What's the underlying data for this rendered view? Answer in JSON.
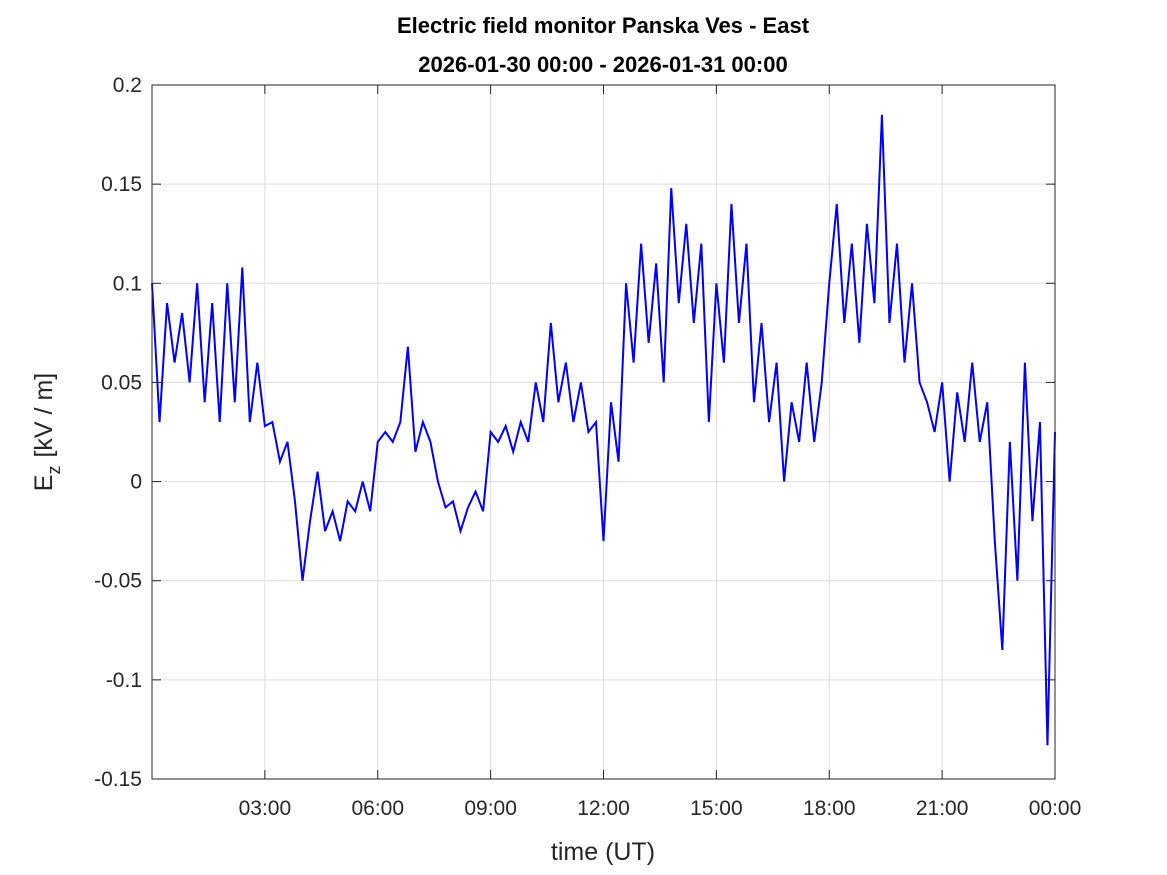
{
  "chart_data": {
    "type": "line",
    "title": "Electric field monitor Panska Ves - East",
    "subtitle": "2026-01-30 00:00 - 2026-01-31 00:00",
    "x_label": "time (UT)",
    "y_label": {
      "base": "E",
      "subscript": "z",
      "rest": "[kV / m]"
    },
    "xlim": [
      0,
      24
    ],
    "xticks": [
      {
        "value": 3,
        "label": "03:00"
      },
      {
        "value": 6,
        "label": "06:00"
      },
      {
        "value": 9,
        "label": "09:00"
      },
      {
        "value": 12,
        "label": "12:00"
      },
      {
        "value": 15,
        "label": "15:00"
      },
      {
        "value": 18,
        "label": "18:00"
      },
      {
        "value": 21,
        "label": "21:00"
      },
      {
        "value": 24,
        "label": "00:00"
      }
    ],
    "ylim": [
      -0.15,
      0.2
    ],
    "yticks": [
      -0.15,
      -0.1,
      -0.05,
      0,
      0.05,
      0.1,
      0.15,
      0.2
    ],
    "grid": true,
    "x": [
      0,
      0.2,
      0.4,
      0.6,
      0.8,
      1,
      1.2,
      1.4,
      1.6,
      1.8,
      2,
      2.2,
      2.4,
      2.6,
      2.8,
      3,
      3.2,
      3.4,
      3.6,
      3.8,
      4,
      4.2,
      4.4,
      4.6,
      4.8,
      5,
      5.2,
      5.4,
      5.6,
      5.8,
      6,
      6.2,
      6.4,
      6.6,
      6.8,
      7,
      7.2,
      7.4,
      7.6,
      7.8,
      8,
      8.2,
      8.4,
      8.6,
      8.8,
      9,
      9.2,
      9.4,
      9.6,
      9.8,
      10,
      10.2,
      10.4,
      10.6,
      10.8,
      11,
      11.2,
      11.4,
      11.6,
      11.8,
      12,
      12.2,
      12.4,
      12.6,
      12.8,
      13,
      13.2,
      13.4,
      13.6,
      13.8,
      14,
      14.2,
      14.4,
      14.6,
      14.8,
      15,
      15.2,
      15.4,
      15.6,
      15.8,
      16,
      16.2,
      16.4,
      16.6,
      16.8,
      17,
      17.2,
      17.4,
      17.6,
      17.8,
      18,
      18.2,
      18.4,
      18.6,
      18.8,
      19,
      19.2,
      19.4,
      19.6,
      19.8,
      20,
      20.2,
      20.4,
      20.6,
      20.8,
      21,
      21.2,
      21.4,
      21.6,
      21.8,
      22,
      22.2,
      22.4,
      22.6,
      22.8,
      23,
      23.2,
      23.4,
      23.6,
      23.8,
      24
    ],
    "series": [
      {
        "color": "#0000ff",
        "values": [
          0.1,
          0.03,
          0.09,
          0.06,
          0.085,
          0.05,
          0.1,
          0.04,
          0.09,
          0.03,
          0.1,
          0.04,
          0.108,
          0.03,
          0.06,
          0.028,
          0.03,
          0.01,
          0.02,
          -0.01,
          -0.05,
          -0.02,
          0.005,
          -0.025,
          -0.015,
          -0.03,
          -0.01,
          -0.015,
          0,
          -0.015,
          0.02,
          0.025,
          0.02,
          0.03,
          0.068,
          0.015,
          0.03,
          0.02,
          0,
          -0.013,
          -0.01,
          -0.025,
          -0.013,
          -0.005,
          -0.015,
          0.025,
          0.02,
          0.028,
          0.015,
          0.03,
          0.02,
          0.05,
          0.03,
          0.08,
          0.04,
          0.06,
          0.03,
          0.05,
          0.025,
          0.03,
          -0.03,
          0.04,
          0.01,
          0.1,
          0.06,
          0.12,
          0.07,
          0.11,
          0.05,
          0.148,
          0.09,
          0.13,
          0.08,
          0.12,
          0.03,
          0.1,
          0.06,
          0.14,
          0.08,
          0.12,
          0.04,
          0.08,
          0.03,
          0.06,
          0,
          0.04,
          0.02,
          0.06,
          0.02,
          0.05,
          0.1,
          0.14,
          0.08,
          0.12,
          0.07,
          0.13,
          0.09,
          0.185,
          0.08,
          0.12,
          0.06,
          0.1,
          0.05,
          0.04,
          0.025,
          0.05,
          0,
          0.045,
          0.02,
          0.06,
          0.02,
          0.04,
          -0.03,
          -0.085,
          0.02,
          -0.05,
          0.06,
          -0.02,
          0.03,
          -0.133,
          0.025
        ]
      }
    ]
  }
}
